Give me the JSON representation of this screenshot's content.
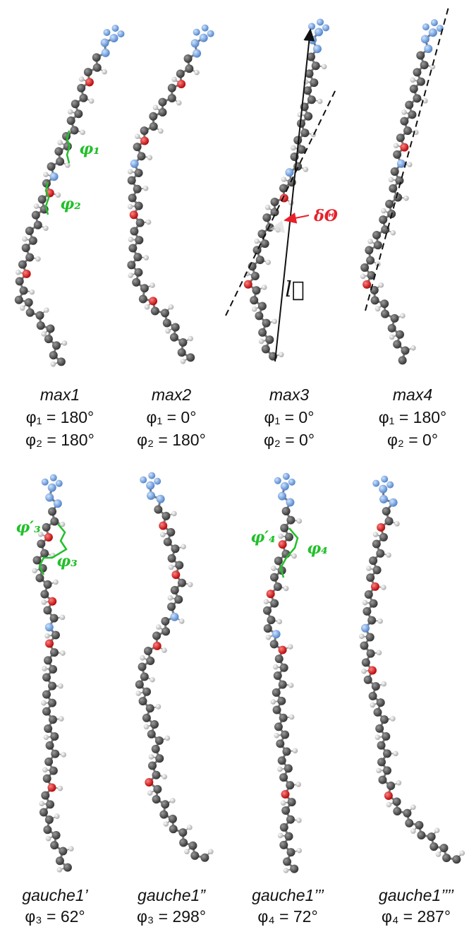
{
  "panels": [
    {
      "name": "max1",
      "lines": [
        "φ₁ = 180°",
        "φ₂ = 180°"
      ]
    },
    {
      "name": "max2",
      "lines": [
        "φ₁ = 0°",
        "φ₂ = 180°"
      ]
    },
    {
      "name": "max3",
      "lines": [
        "φ₁ = 0°",
        "φ₂ = 0°"
      ]
    },
    {
      "name": "max4",
      "lines": [
        "φ₁ = 180°",
        "φ₂ = 0°"
      ]
    },
    {
      "name": "gauche1’",
      "lines": [
        "φ₃ = 62°"
      ]
    },
    {
      "name": "gauche1”",
      "lines": [
        "φ₃ = 298°"
      ]
    },
    {
      "name": "gauche1’’’",
      "lines": [
        "φ₄ = 72°"
      ]
    },
    {
      "name": "gauche1’’’’",
      "lines": [
        "φ₄ = 287°"
      ]
    }
  ],
  "annotations": {
    "phi1": "φ₁",
    "phi2": "φ₂",
    "delta_theta": "δΘ",
    "l_vector": "l⃗",
    "phi3_prime": "φ′₃",
    "phi3": "φ₃",
    "phi4_prime": "φ′₄",
    "phi4": "φ₄"
  }
}
